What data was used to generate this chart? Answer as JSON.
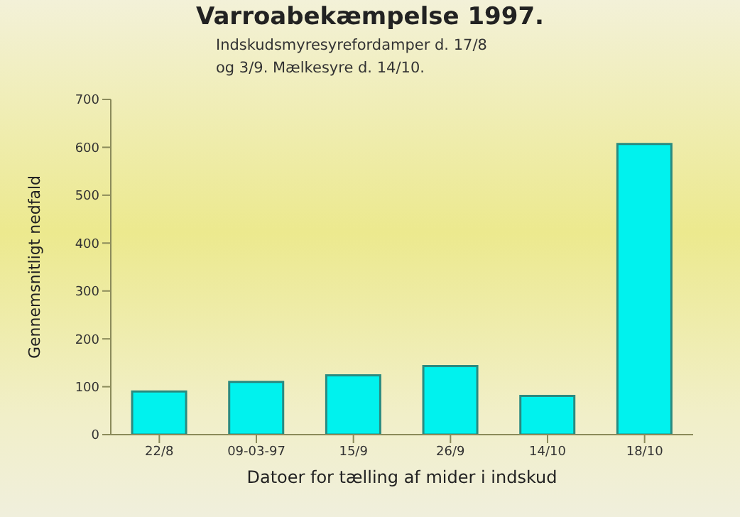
{
  "chart_data": {
    "type": "bar",
    "title": "Varroabekæmpelse 1997.",
    "subtitle": "Indskudsmyresyrefordamper d. 17/8\nog 3/9. Mælkesyre d. 14/10.",
    "xlabel": "Datoer for tælling af mider i indskud",
    "ylabel": "Gennemsnitligt nedfald",
    "categories": [
      "22/8",
      "09-03-97",
      "15/9",
      "26/9",
      "14/10",
      "18/10"
    ],
    "values": [
      90,
      110,
      124,
      143,
      81,
      607
    ],
    "color": "#00f2ee",
    "ylim": [
      0,
      700
    ],
    "yticks": [
      0,
      100,
      200,
      300,
      400,
      500,
      600,
      700
    ],
    "grid": false
  }
}
